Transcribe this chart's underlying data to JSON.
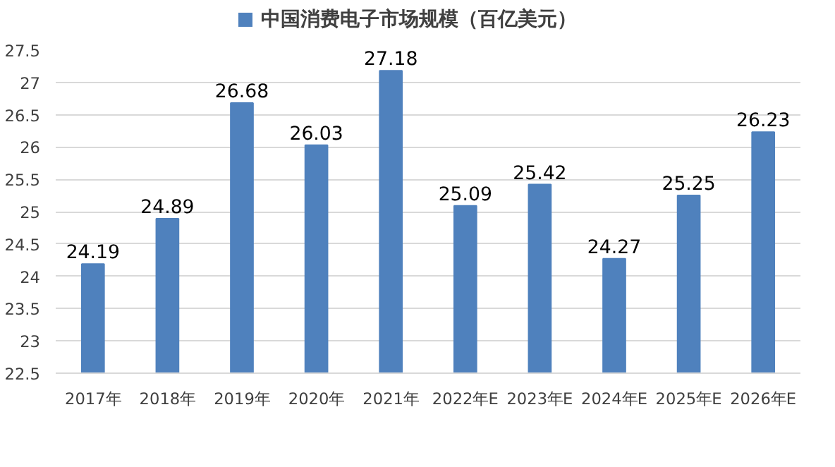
{
  "chart_data": {
    "type": "bar",
    "categories": [
      "2017年",
      "2018年",
      "2019年",
      "2020年",
      "2021年",
      "2022年E",
      "2023年E",
      "2024年E",
      "2025年E",
      "2026年E"
    ],
    "series": [
      {
        "name": "中国消费电子市场规模（百亿美元）",
        "color": "#4f81bd",
        "values": [
          24.19,
          24.89,
          26.68,
          26.03,
          27.18,
          25.09,
          25.42,
          24.27,
          25.25,
          26.23
        ]
      }
    ],
    "ylim": [
      22.5,
      27.5
    ],
    "yticks": [
      22.5,
      23,
      23.5,
      24,
      24.5,
      25,
      25.5,
      26,
      26.5,
      27,
      27.5
    ],
    "grid": "y",
    "legend": "top",
    "data_labels": true
  }
}
